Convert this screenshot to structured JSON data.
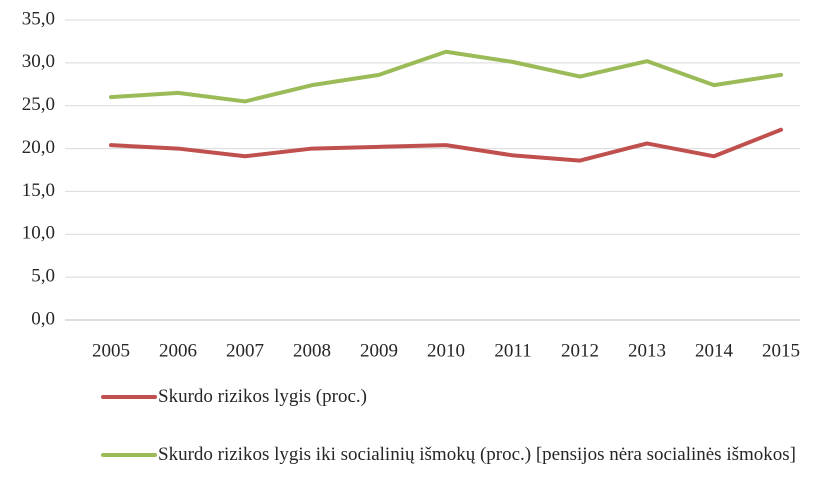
{
  "chart_data": {
    "type": "line",
    "categories": [
      "2005",
      "2006",
      "2007",
      "2008",
      "2009",
      "2010",
      "2011",
      "2012",
      "2013",
      "2014",
      "2015"
    ],
    "series": [
      {
        "name": "Skurdo rizikos lygis (proc.)",
        "color": "#c0504d",
        "values": [
          20.4,
          20.0,
          19.1,
          20.0,
          20.2,
          20.4,
          19.2,
          18.6,
          20.6,
          19.1,
          22.2
        ]
      },
      {
        "name": "Skurdo rizikos lygis iki socialinių išmokų (proc.) [pensijos nėra socialinės išmokos]",
        "color": "#9bbb59",
        "values": [
          26.0,
          26.5,
          25.5,
          27.4,
          28.6,
          31.3,
          30.1,
          28.4,
          30.2,
          27.4,
          28.6
        ]
      }
    ],
    "ylim": [
      0,
      35
    ],
    "yticks": [
      {
        "value": 0,
        "label": "0,0"
      },
      {
        "value": 5,
        "label": "5,0"
      },
      {
        "value": 10,
        "label": "10,0"
      },
      {
        "value": 15,
        "label": "15,0"
      },
      {
        "value": 20,
        "label": "20,0"
      },
      {
        "value": 25,
        "label": "25,0"
      },
      {
        "value": 30,
        "label": "30,0"
      },
      {
        "value": 35,
        "label": "35,0"
      }
    ],
    "grid": true,
    "legend": "bottom"
  }
}
